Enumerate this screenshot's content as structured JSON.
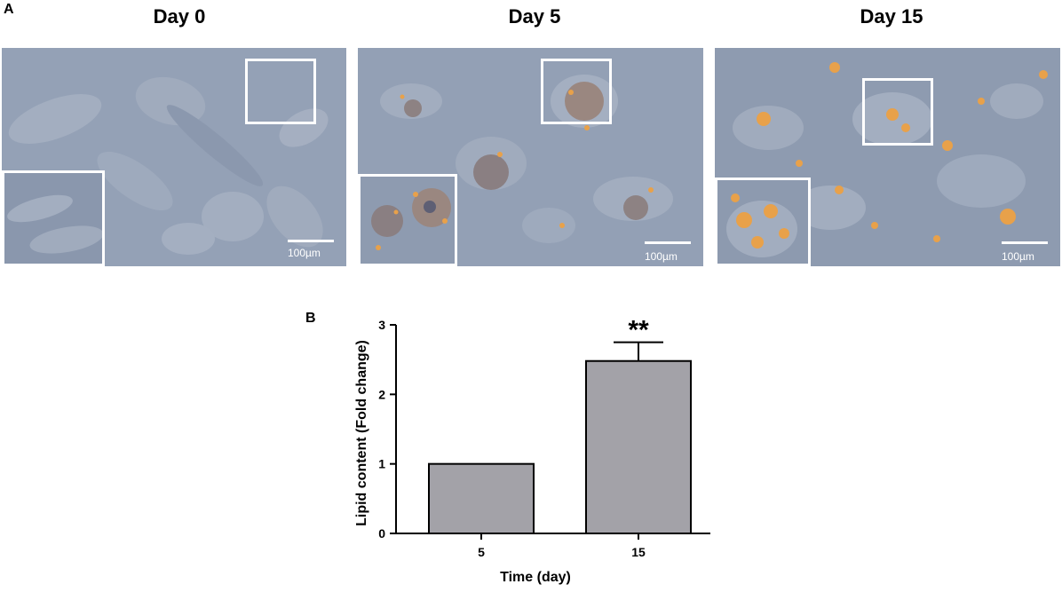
{
  "panel_a_label": "A",
  "panel_b_label": "B",
  "micrographs": [
    {
      "title": "Day 0",
      "scale_bar": "100µm"
    },
    {
      "title": "Day 5",
      "scale_bar": "100µm"
    },
    {
      "title": "Day 15",
      "scale_bar": "100µm"
    }
  ],
  "colors": {
    "bar_fill": "#a3a2a8",
    "lipid_droplet": "#e8a14a",
    "micrograph_bg": "#8f9db3"
  },
  "chart_data": {
    "type": "bar",
    "categories": [
      "5",
      "15"
    ],
    "values": [
      1.0,
      2.48
    ],
    "errors": [
      0,
      0.27
    ],
    "annotations": [
      "",
      "**"
    ],
    "xlabel": "Time (day)",
    "ylabel": "Lipid content (Fold change)",
    "ylim": [
      0,
      3
    ],
    "yticks": [
      "0",
      "1",
      "2",
      "3"
    ],
    "grid": false,
    "legend": "none"
  }
}
